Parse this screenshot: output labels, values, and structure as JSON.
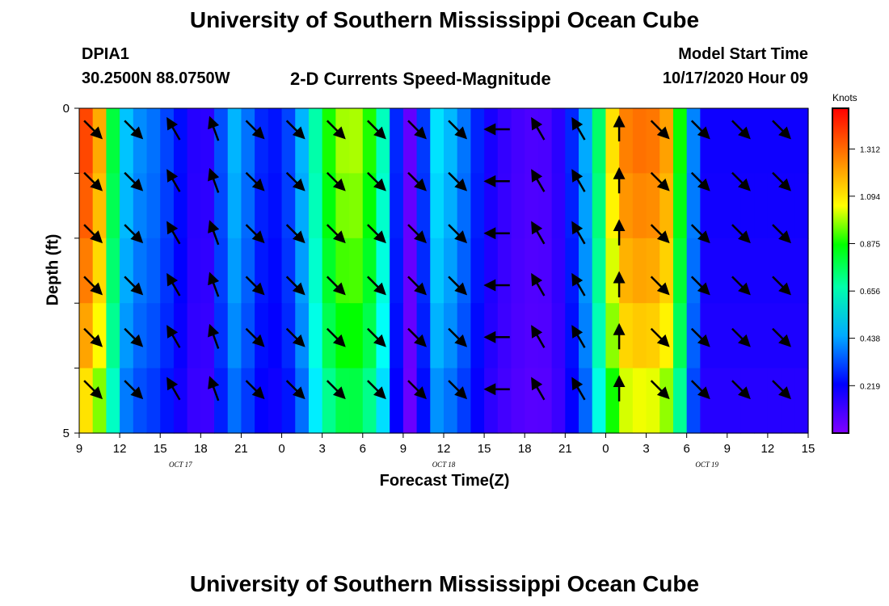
{
  "header": {
    "title": "University of Southern Mississippi Ocean Cube",
    "station": "DPIA1",
    "latlon": "30.2500N 88.0750W",
    "subtitle": "2-D Currents Speed-Magnitude",
    "model_start_label": "Model Start Time",
    "model_start_value": "10/17/2020 Hour 09"
  },
  "footer": {
    "title": "University of Southern Mississippi Ocean Cube"
  },
  "chart_data": {
    "type": "heatmap",
    "xlabel": "Forecast Time(Z)",
    "ylabel": "Depth (ft)",
    "x_ticks": [
      "9",
      "12",
      "15",
      "18",
      "21",
      "0",
      "3",
      "6",
      "9",
      "12",
      "15",
      "18",
      "21",
      "0",
      "3",
      "6",
      "9",
      "12",
      "15"
    ],
    "x_tick_hours": [
      0,
      3,
      6,
      9,
      12,
      15,
      18,
      21,
      24,
      27,
      30,
      33,
      36,
      39,
      42,
      45,
      48,
      51,
      54
    ],
    "date_labels": [
      {
        "label": "OCT 17",
        "hour": 7.5
      },
      {
        "label": "OCT 18",
        "hour": 27
      },
      {
        "label": "OCT 19",
        "hour": 46.5
      }
    ],
    "y_ticks": [
      "0",
      "5"
    ],
    "ylim": [
      0,
      5
    ],
    "xlim_hours": [
      0,
      54
    ],
    "colorbar": {
      "title": "Knots",
      "ticks": [
        0.219,
        0.438,
        0.656,
        0.875,
        1.094,
        1.312
      ],
      "range": [
        0,
        1.5
      ]
    },
    "speed_profile_hours": [
      0,
      1,
      2,
      3,
      4,
      5,
      6,
      7,
      8,
      9,
      10,
      11,
      12,
      13,
      14,
      15,
      16,
      17,
      18,
      19,
      20,
      21,
      22,
      23,
      24,
      25,
      26,
      27,
      28,
      29,
      30,
      31,
      32,
      33,
      34,
      35,
      36,
      37,
      38,
      39,
      40,
      41,
      42,
      43,
      44,
      45,
      46,
      47,
      48,
      49,
      50,
      51,
      52,
      53,
      54
    ],
    "speed_profile_knots": [
      1.4,
      1.35,
      1.05,
      0.55,
      0.42,
      0.4,
      0.35,
      0.28,
      0.2,
      0.12,
      0.18,
      0.48,
      0.45,
      0.3,
      0.25,
      0.25,
      0.38,
      0.55,
      0.8,
      0.97,
      1.0,
      0.98,
      0.8,
      0.5,
      0.05,
      0.05,
      0.55,
      0.5,
      0.44,
      0.32,
      0.22,
      0.15,
      0.12,
      0.09,
      0.09,
      0.1,
      0.2,
      0.35,
      0.55,
      0.95,
      1.25,
      1.3,
      1.3,
      1.28,
      1.15,
      0.6,
      0.2,
      0.2,
      0.2,
      0.2,
      0.2,
      0.2,
      0.2,
      0.2,
      0.2
    ],
    "layer_factors": [
      1.0,
      0.97,
      0.93,
      0.88,
      0.8
    ],
    "arrow_hours": [
      1,
      4,
      7,
      10,
      13,
      16,
      19,
      22,
      25,
      28,
      31,
      34,
      37,
      40,
      43,
      46,
      49,
      52
    ],
    "arrow_directions_deg": [
      135,
      135,
      330,
      340,
      135,
      135,
      135,
      135,
      135,
      135,
      270,
      330,
      330,
      0,
      135,
      135,
      135,
      135
    ],
    "arrow_depth_rows": 6
  }
}
